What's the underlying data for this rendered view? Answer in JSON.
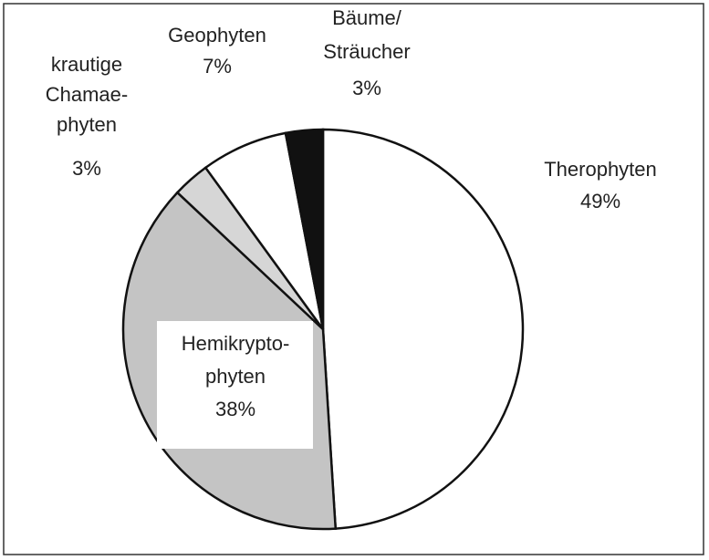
{
  "chart_data": {
    "type": "pie",
    "categories": [
      [
        "Therophyten"
      ],
      [
        "Hemikrypto-",
        "phyten"
      ],
      [
        "krautige",
        "Chamae-",
        "phyten"
      ],
      [
        "Geophyten"
      ],
      [
        "Bäume/",
        "Sträucher"
      ]
    ],
    "values": [
      49,
      38,
      3,
      7,
      3
    ],
    "value_labels": [
      "49%",
      "38%",
      "3%",
      "7%",
      "3%"
    ],
    "colors": [
      "#ffffff",
      "#c4c4c4",
      "#d6d6d6",
      "#ffffff",
      "#111111"
    ]
  }
}
